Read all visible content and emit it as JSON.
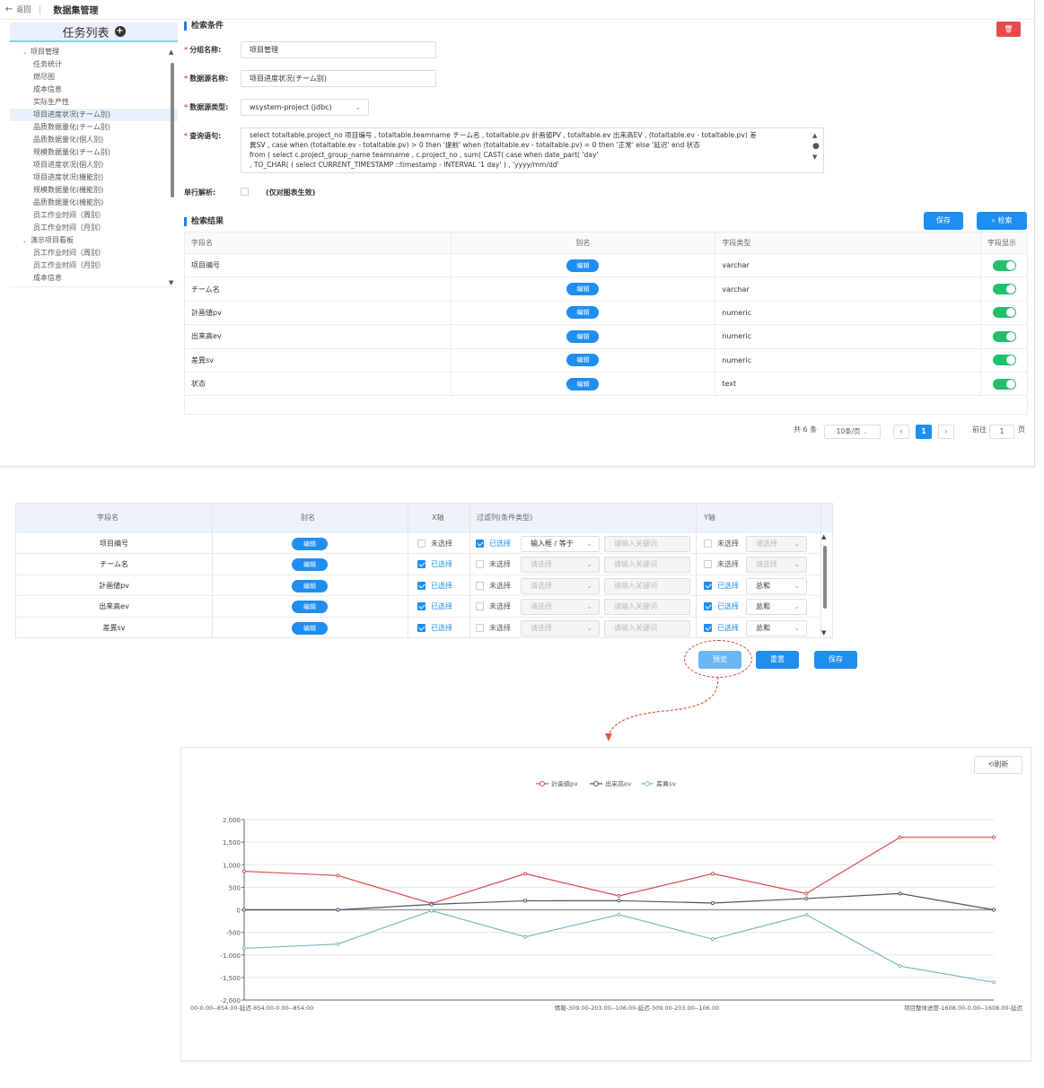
{
  "topbar": {
    "back_label": "返回",
    "title": "数据集管理"
  },
  "sidebar": {
    "title": "任务列表",
    "groups": [
      {
        "label": "项目管理",
        "items": [
          "任务统计",
          "燃尽图",
          "成本信息",
          "实际生产性",
          "项目进度状况(チーム別)",
          "品质数据量化(チーム别)",
          "品质数据量化(個人別)",
          "规模数据量化(チーム别)",
          "项目进度状况(個人別)",
          "项目进度状况(機能別)",
          "规模数据量化(機能別)",
          "品质数据量化(機能別)",
          "员工作业时间（周别）",
          "员工作业时间（月别）"
        ]
      },
      {
        "label": "演示项目看板",
        "items": [
          "员工作业时间（周别）",
          "员工作业时间（月别）",
          "成本信息"
        ]
      }
    ]
  },
  "search": {
    "section_title": "检索条件",
    "delete_icon": "trash-icon",
    "group_label": "分组名称:",
    "group_value": "项目管理",
    "dataset_label": "数据源名称:",
    "dataset_value": "项目进度状况(チーム别)",
    "type_label": "数据源类型:",
    "type_value": "wsystem-project (jdbc)",
    "query_label": "查询语句:",
    "query_lines": [
      "select   totaltable.project_no 项目编号   , totaltable.teamname チーム名   , totaltable.pv 計画値PV   , totaltable.ev 出来高EV   , (totaltable.ev - totaltable.pv) 差",
      "異SV   , case      when (totaltable.ev - totaltable.pv) > 0        then '提前'      when (totaltable.ev - totaltable.pv) = 0        then '正常'      else '延迟'      end 状态",
      "from    (       select       c.project_group_name teamname       , c.project_no       , sum(         CAST(             case          when date_part(               'day'",
      ", TO_CHAR(             (                   select               CURRENT_TIMESTAMP ::timestamp - INTERVAL '1 day'               )               , 'yyyy/mm/dd'"
    ],
    "single_label": "单行解析:",
    "single_hint": "(仅对图表生效)",
    "save_label": "保存",
    "search_label": "检索"
  },
  "results": {
    "section_title": "检索结果",
    "headers": [
      "字段名",
      "别名",
      "字段类型",
      "字段显示"
    ],
    "edit_label": "编辑",
    "rows": [
      {
        "name": "项目编号",
        "type": "varchar"
      },
      {
        "name": "チーム名",
        "type": "varchar"
      },
      {
        "name": "計画値pv",
        "type": "numeric"
      },
      {
        "name": "出来高ev",
        "type": "numeric"
      },
      {
        "name": "差異sv",
        "type": "numeric"
      },
      {
        "name": "状态",
        "type": "text"
      }
    ]
  },
  "pagination": {
    "total": "共 6 条",
    "page_size": "10条/页",
    "current": "1",
    "goto_label": "前往",
    "goto_value": "1",
    "page_suffix": "页"
  },
  "config": {
    "headers": [
      "字段名",
      "别名",
      "X轴",
      "过滤列(条件类型)",
      "Y轴"
    ],
    "edit_label": "编辑",
    "selected_label": "已选择",
    "unselected_label": "未选择",
    "select_placeholder": "请选择",
    "keyword_placeholder": "请输入关键词",
    "rows": [
      {
        "name": "项目编号",
        "x": false,
        "filter": true,
        "filter_type": "输入框 / 等于",
        "y": false,
        "agg": ""
      },
      {
        "name": "チーム名",
        "x": true,
        "filter": false,
        "filter_type": "",
        "y": false,
        "agg": ""
      },
      {
        "name": "計画値pv",
        "x": true,
        "filter": false,
        "filter_type": "",
        "y": true,
        "agg": "总和"
      },
      {
        "name": "出来高ev",
        "x": true,
        "filter": false,
        "filter_type": "",
        "y": true,
        "agg": "总和"
      },
      {
        "name": "差異sv",
        "x": true,
        "filter": false,
        "filter_type": "",
        "y": true,
        "agg": "总和"
      }
    ],
    "preview_label": "预览",
    "reset_label": "重置",
    "save_label": "保存"
  },
  "chart_panel": {
    "refresh_label": "刷新"
  },
  "chart_data": {
    "type": "line",
    "title": "",
    "ylim": [
      -2000,
      2000
    ],
    "yticks": [
      2000,
      1500,
      1000,
      500,
      0,
      -500,
      -1000,
      -1500,
      -2000
    ],
    "ytick_labels": [
      "2,000",
      "1,500",
      "1,000",
      "500",
      "0",
      "-500",
      "-1,000",
      "-1,500",
      "-2,000"
    ],
    "x_labels_shown": [
      "00-0.00--854.00-延迟-854.00-0.00--854.00",
      "情報-309.00-203.00--106.00-延迟-309.00-203.00--106.00",
      "项目整体进度-1608.00-0.00--1608.00-延迟"
    ],
    "point_count": 9,
    "legend_position": "top-center",
    "grid": true,
    "series": [
      {
        "name": "計画値pv",
        "color": "#d94a4a",
        "values": [
          854,
          760,
          140,
          800,
          309,
          800,
          360,
          1608,
          1608
        ]
      },
      {
        "name": "出来高ev",
        "color": "#4a5563",
        "values": [
          0,
          0,
          120,
          200,
          203,
          150,
          250,
          360,
          0
        ]
      },
      {
        "name": "差異sv",
        "color": "#78b9bd",
        "values": [
          -854,
          -760,
          -20,
          -600,
          -106,
          -650,
          -110,
          -1248,
          -1608
        ]
      }
    ]
  }
}
